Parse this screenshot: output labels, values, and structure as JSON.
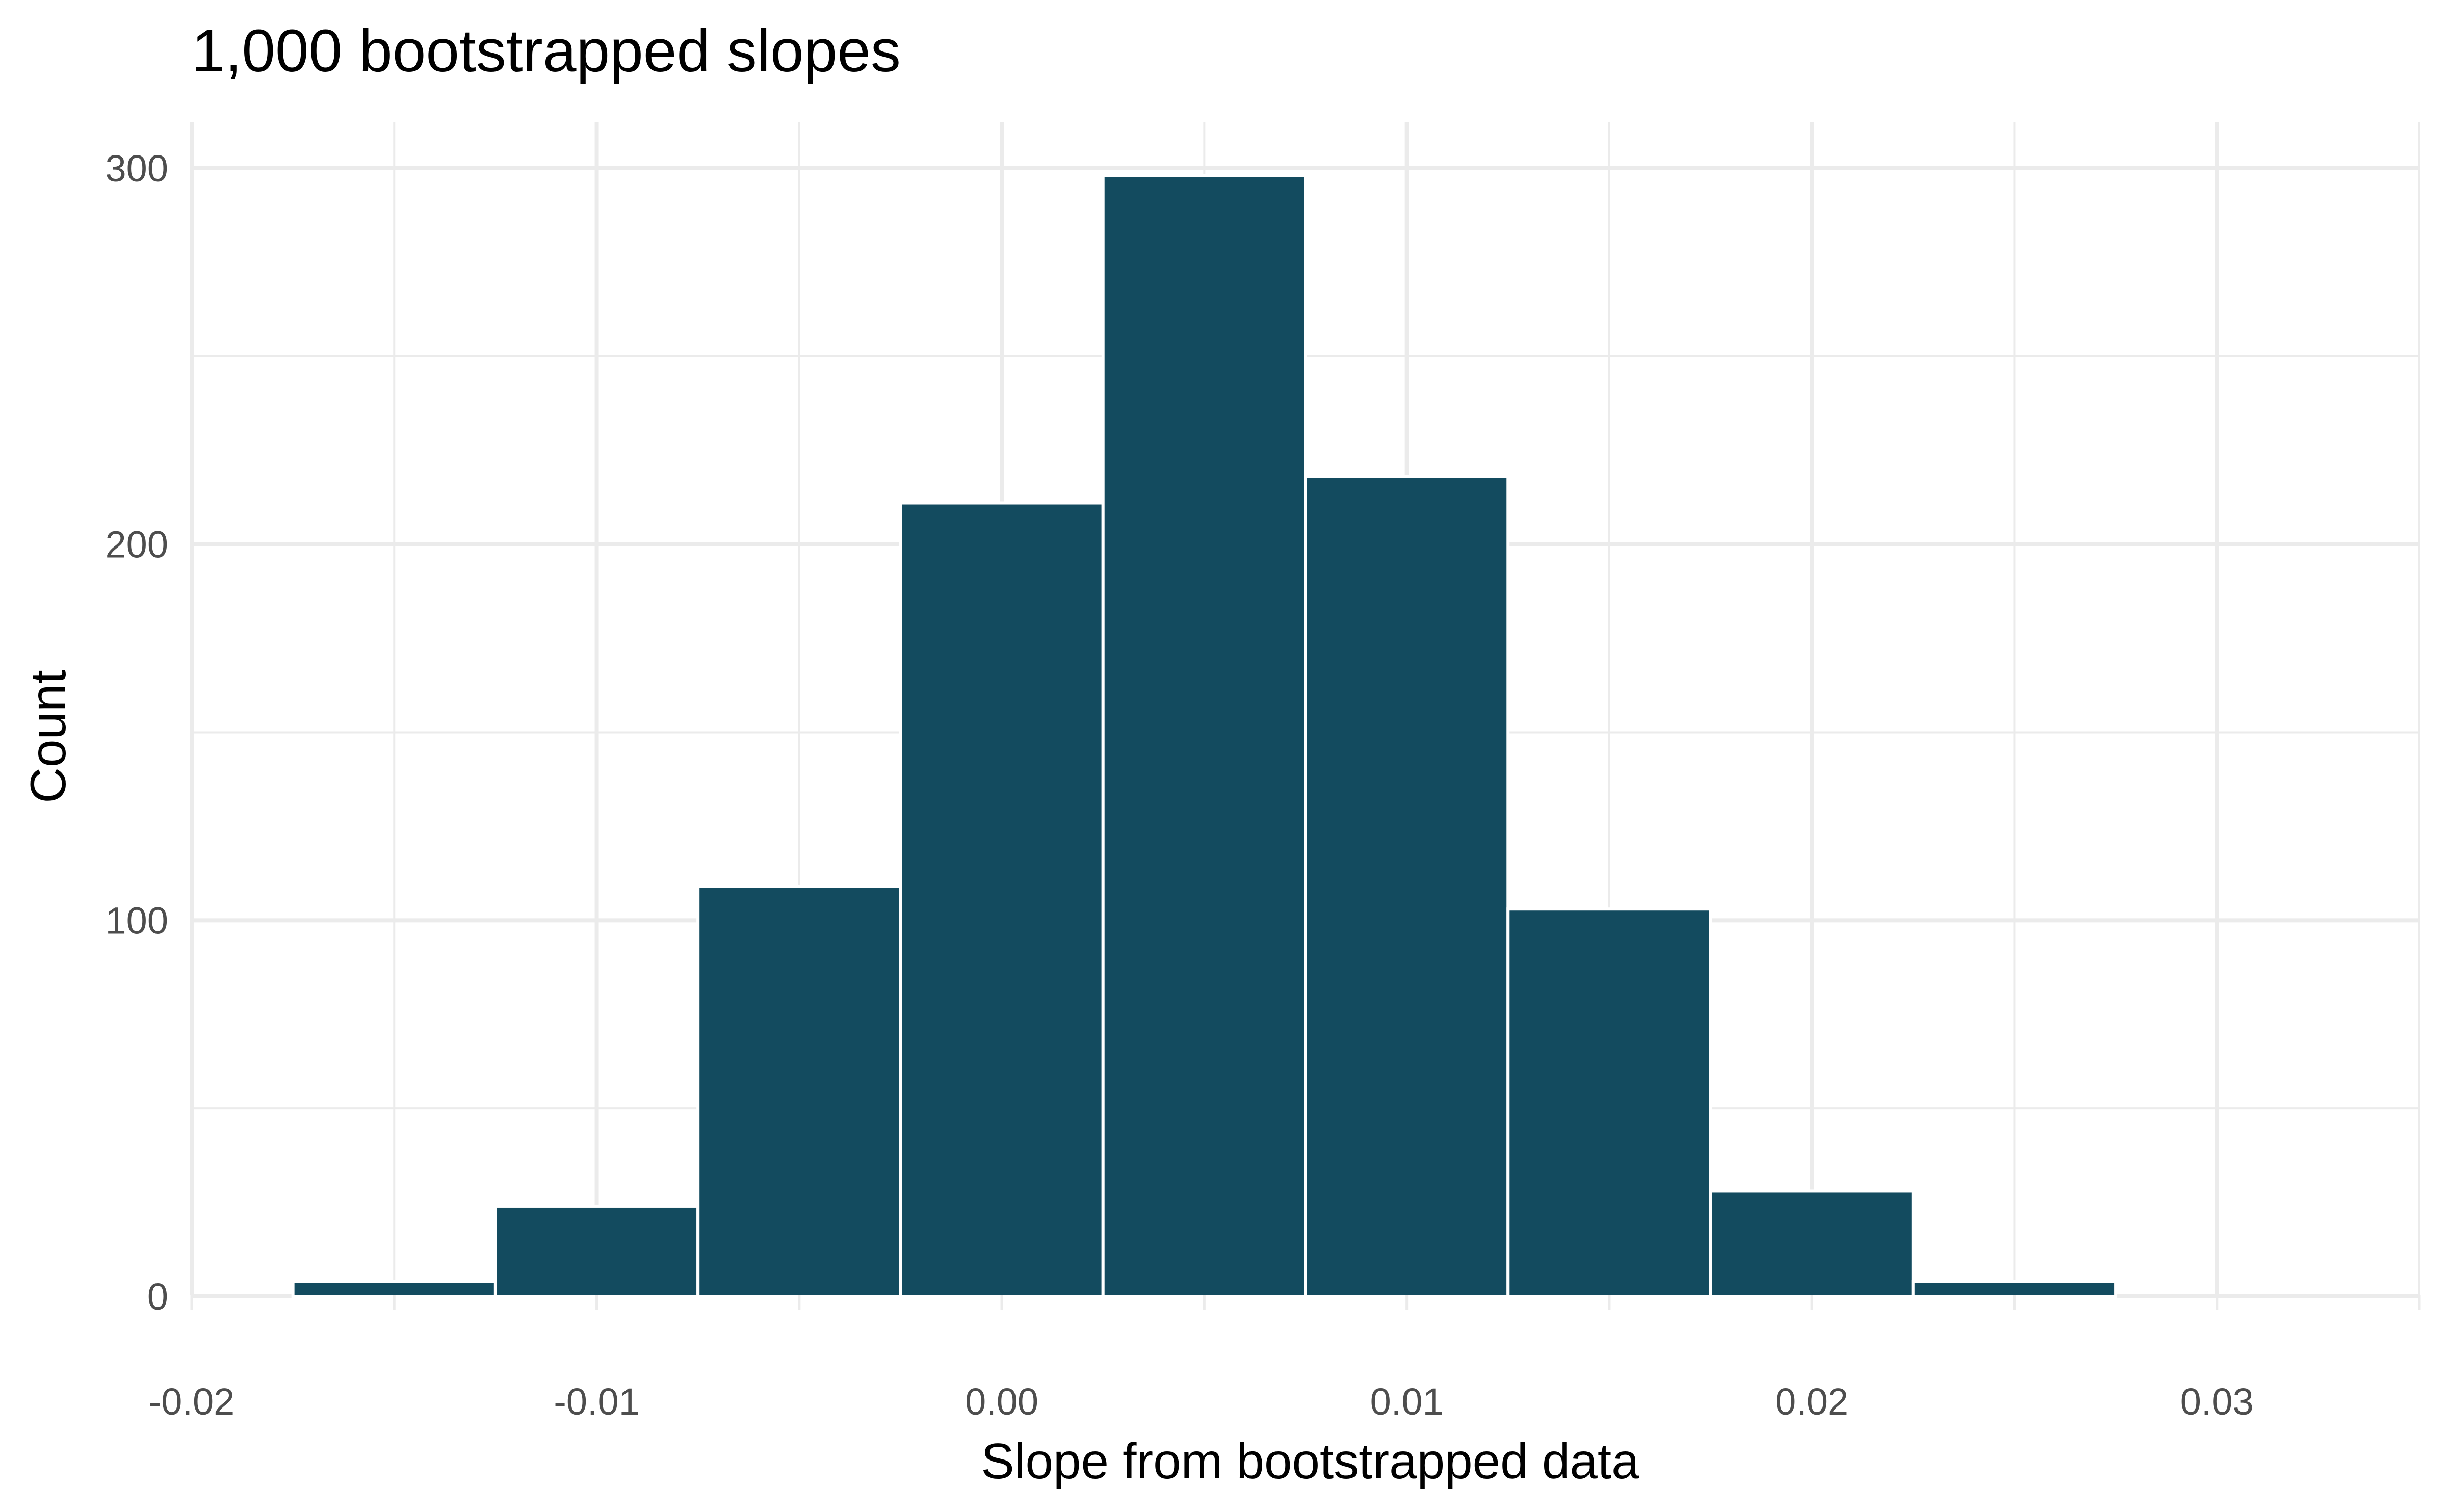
{
  "chart_data": {
    "type": "bar",
    "title": "1,000 bootstrapped slopes",
    "xlabel": "Slope from bootstrapped data",
    "ylabel": "Count",
    "bin_width": 0.005,
    "bins": [
      {
        "start": -0.0175,
        "end": -0.0125,
        "count": 4
      },
      {
        "start": -0.0125,
        "end": -0.0075,
        "count": 24
      },
      {
        "start": -0.0075,
        "end": -0.0025,
        "count": 109
      },
      {
        "start": -0.0025,
        "end": 0.0025,
        "count": 211
      },
      {
        "start": 0.0025,
        "end": 0.0075,
        "count": 298
      },
      {
        "start": 0.0075,
        "end": 0.0125,
        "count": 218
      },
      {
        "start": 0.0125,
        "end": 0.0175,
        "count": 103
      },
      {
        "start": 0.0175,
        "end": 0.0225,
        "count": 28
      },
      {
        "start": 0.0225,
        "end": 0.0275,
        "count": 4
      },
      {
        "start": 0.0275,
        "end": 0.0325,
        "count": 0
      }
    ],
    "xlim": [
      -0.02,
      0.035
    ],
    "ylim": [
      0,
      300
    ],
    "x_ticks": [
      -0.02,
      -0.01,
      0.0,
      0.01,
      0.02,
      0.03
    ],
    "x_tick_labels": [
      "-0.02",
      "-0.01",
      "0.00",
      "0.01",
      "0.02",
      "0.03"
    ],
    "y_ticks": [
      0,
      100,
      200,
      300
    ],
    "y_tick_labels": [
      "0",
      "100",
      "200",
      "300"
    ],
    "grid": true,
    "legend": "none",
    "bar_color": "#134b5f",
    "bar_outline_color": "#ffffff"
  }
}
